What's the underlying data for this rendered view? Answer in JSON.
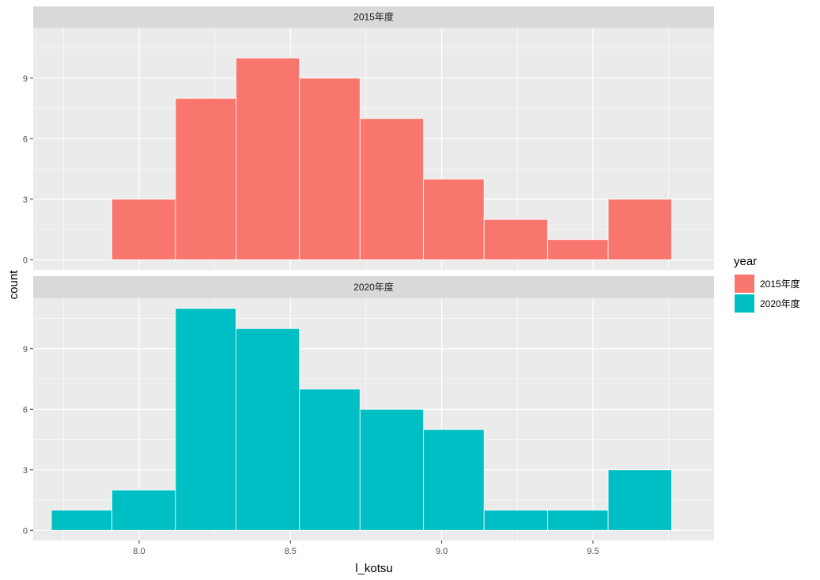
{
  "chart_data": {
    "type": "bar",
    "subtype": "faceted-histogram",
    "xlabel": "l_kotsu",
    "ylabel": "count",
    "legend_title": "year",
    "legend_position": "right",
    "grid": true,
    "bin_width": 0.205,
    "xlim": [
      7.65,
      9.9
    ],
    "x_ticks": [
      8.0,
      8.5,
      9.0,
      9.5
    ],
    "x_tick_labels": [
      "8.0",
      "8.5",
      "9.0",
      "9.5"
    ],
    "y_ticks": [
      0,
      3,
      6,
      9
    ],
    "y_tick_labels": [
      "0",
      "3",
      "6",
      "9"
    ],
    "facets": [
      {
        "strip_label": "2015年度",
        "color": "#F8766D",
        "ylim": [
          -0.5,
          11.5
        ],
        "bins": [
          {
            "x_start": 7.91,
            "x_end": 8.12,
            "count": 3
          },
          {
            "x_start": 8.12,
            "x_end": 8.32,
            "count": 8
          },
          {
            "x_start": 8.32,
            "x_end": 8.53,
            "count": 10
          },
          {
            "x_start": 8.53,
            "x_end": 8.73,
            "count": 9
          },
          {
            "x_start": 8.73,
            "x_end": 8.94,
            "count": 7
          },
          {
            "x_start": 8.94,
            "x_end": 9.14,
            "count": 4
          },
          {
            "x_start": 9.14,
            "x_end": 9.35,
            "count": 2
          },
          {
            "x_start": 9.35,
            "x_end": 9.55,
            "count": 1
          },
          {
            "x_start": 9.55,
            "x_end": 9.76,
            "count": 3
          }
        ]
      },
      {
        "strip_label": "2020年度",
        "color": "#00BFC4",
        "ylim": [
          -0.5,
          11.5
        ],
        "bins": [
          {
            "x_start": 7.71,
            "x_end": 7.91,
            "count": 1
          },
          {
            "x_start": 7.91,
            "x_end": 8.12,
            "count": 2
          },
          {
            "x_start": 8.12,
            "x_end": 8.32,
            "count": 11
          },
          {
            "x_start": 8.32,
            "x_end": 8.53,
            "count": 10
          },
          {
            "x_start": 8.53,
            "x_end": 8.73,
            "count": 7
          },
          {
            "x_start": 8.73,
            "x_end": 8.94,
            "count": 6
          },
          {
            "x_start": 8.94,
            "x_end": 9.14,
            "count": 5
          },
          {
            "x_start": 9.14,
            "x_end": 9.35,
            "count": 1
          },
          {
            "x_start": 9.35,
            "x_end": 9.55,
            "count": 1
          },
          {
            "x_start": 9.55,
            "x_end": 9.76,
            "count": 3
          }
        ]
      }
    ],
    "legend": [
      {
        "label": "2015年度",
        "color": "#F8766D"
      },
      {
        "label": "2020年度",
        "color": "#00BFC4"
      }
    ],
    "colors": {
      "panel_background": "#EBEBEB",
      "strip_background": "#D9D9D9",
      "grid_major": "#FFFFFF",
      "tick_text": "#4D4D4D"
    }
  }
}
